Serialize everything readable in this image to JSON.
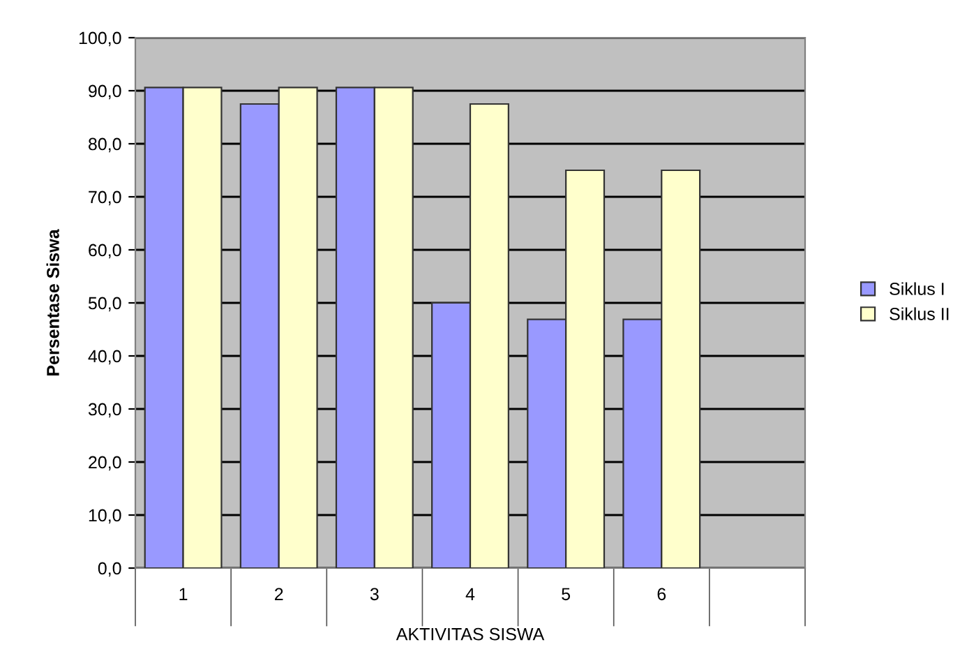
{
  "chart_data": {
    "type": "bar",
    "xlabel": "AKTIVITAS SISWA",
    "ylabel": "Persentase Siswa",
    "categories": [
      "1",
      "2",
      "3",
      "4",
      "5",
      "6",
      null
    ],
    "series": [
      {
        "name": "Siklus I",
        "color": "#9999ff",
        "values": [
          90.6,
          87.5,
          90.6,
          50.0,
          46.9,
          46.9,
          null
        ]
      },
      {
        "name": "Siklus II",
        "color": "#ffffcc",
        "values": [
          90.6,
          90.6,
          90.6,
          87.5,
          75.0,
          75.0,
          null
        ]
      }
    ],
    "ylim": [
      0,
      100
    ],
    "yticks": [
      {
        "value": 0,
        "label": "0,0"
      },
      {
        "value": 10,
        "label": "10,0"
      },
      {
        "value": 20,
        "label": "20,0"
      },
      {
        "value": 30,
        "label": "30,0"
      },
      {
        "value": 40,
        "label": "40,0"
      },
      {
        "value": 50,
        "label": "50,0"
      },
      {
        "value": 60,
        "label": "60,0"
      },
      {
        "value": 70,
        "label": "70,0"
      },
      {
        "value": 80,
        "label": "80,0"
      },
      {
        "value": 90,
        "label": "90,0"
      },
      {
        "value": 100,
        "label": "100,0"
      }
    ],
    "grid": "y",
    "legend": "right"
  }
}
